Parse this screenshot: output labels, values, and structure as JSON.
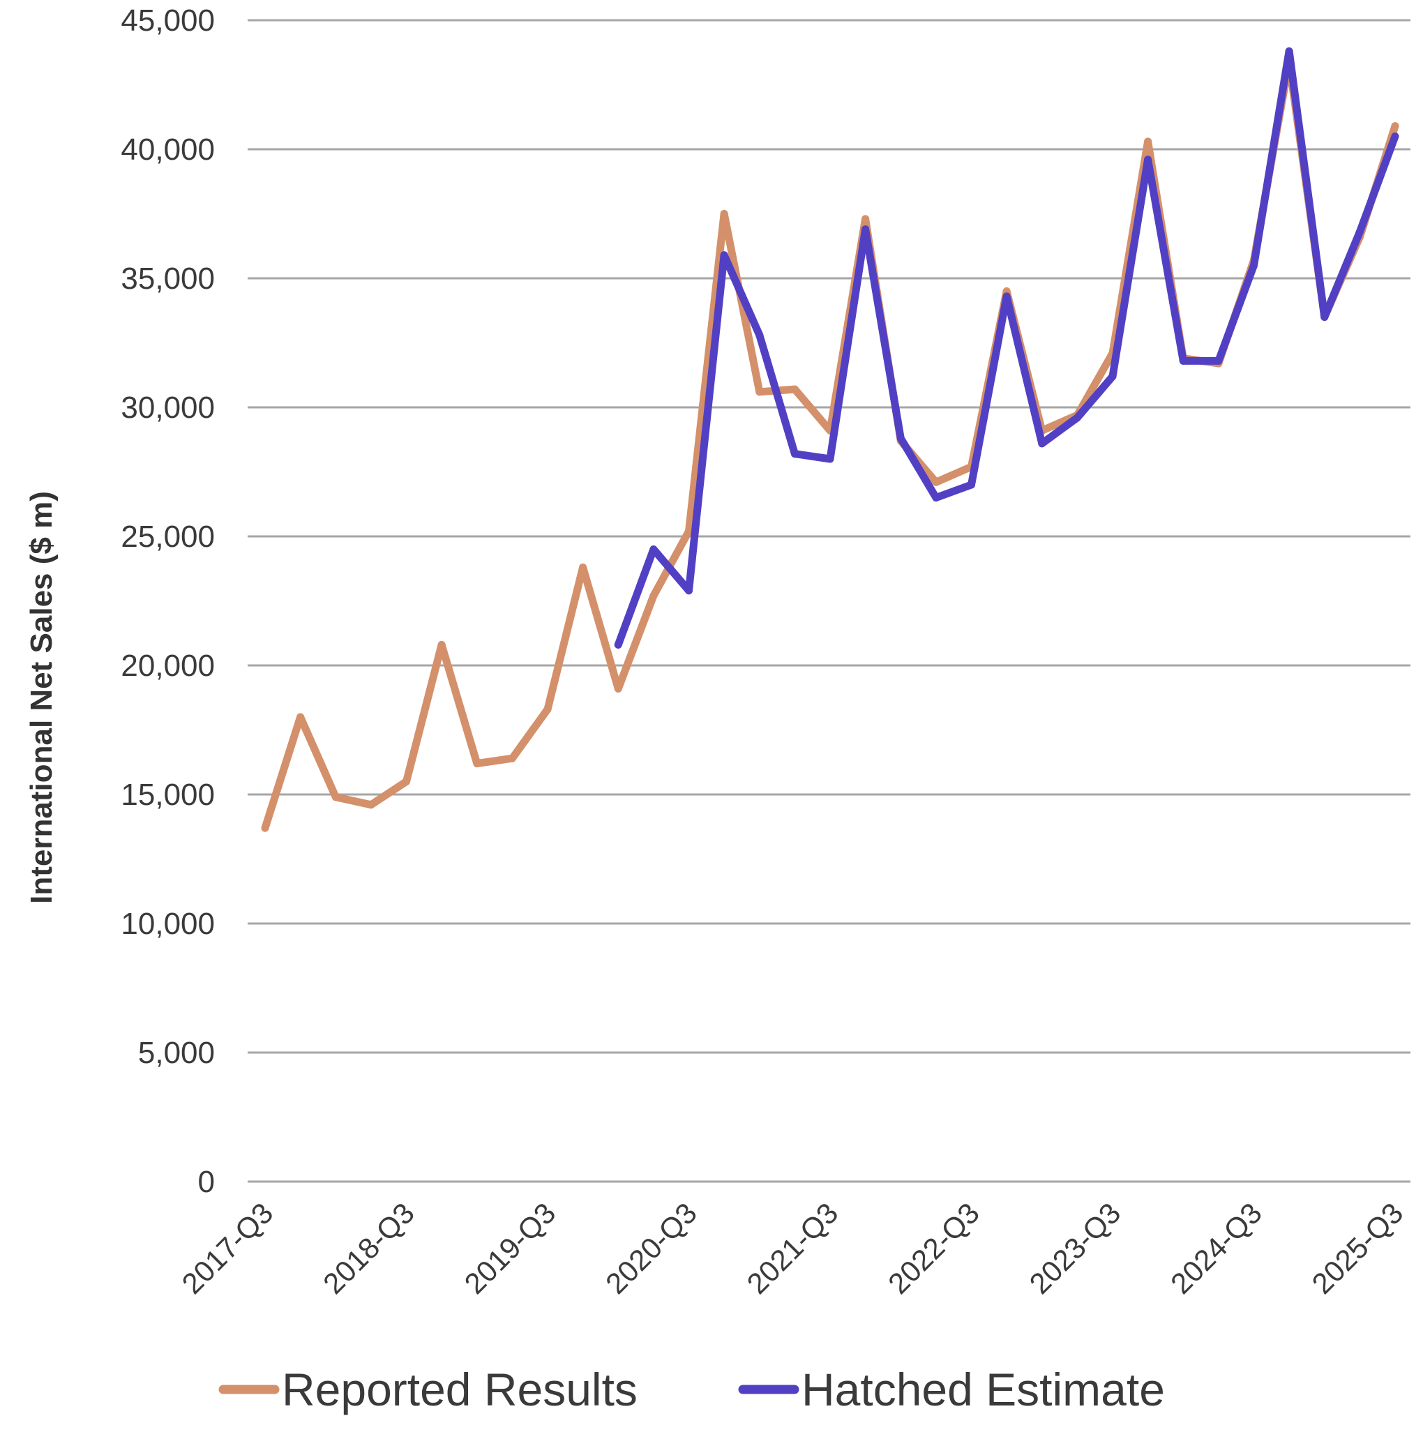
{
  "chart_data": {
    "type": "line",
    "title": "",
    "xlabel": "",
    "ylabel": "International Net Sales ($ m)",
    "ylim": [
      0,
      45000
    ],
    "yticks": [
      0,
      5000,
      10000,
      15000,
      20000,
      25000,
      30000,
      35000,
      40000,
      45000
    ],
    "ytick_labels": [
      "0",
      "5,000",
      "10,000",
      "15,000",
      "20,000",
      "25,000",
      "30,000",
      "35,000",
      "40,000",
      "45,000"
    ],
    "xtick_labels": [
      "2017-Q3",
      "2018-Q3",
      "2019-Q3",
      "2020-Q3",
      "2021-Q3",
      "2022-Q3",
      "2023-Q3",
      "2024-Q3",
      "2025-Q3"
    ],
    "categories": [
      "2017-Q3",
      "2017-Q4",
      "2018-Q1",
      "2018-Q2",
      "2018-Q3",
      "2018-Q4",
      "2019-Q1",
      "2019-Q2",
      "2019-Q3",
      "2019-Q4",
      "2020-Q1",
      "2020-Q2",
      "2020-Q3",
      "2020-Q4",
      "2021-Q1",
      "2021-Q2",
      "2021-Q3",
      "2021-Q4",
      "2022-Q1",
      "2022-Q2",
      "2022-Q3",
      "2022-Q4",
      "2023-Q1",
      "2023-Q2",
      "2023-Q3",
      "2023-Q4",
      "2024-Q1",
      "2024-Q2",
      "2024-Q3",
      "2024-Q4",
      "2025-Q1",
      "2025-Q2",
      "2025-Q3"
    ],
    "grid": true,
    "legend_position": "bottom",
    "series": [
      {
        "name": "Reported Results",
        "color": "#d4906a",
        "values": [
          13700,
          18000,
          14900,
          14600,
          15500,
          20800,
          16200,
          16400,
          18300,
          23800,
          19100,
          22700,
          25200,
          37500,
          30600,
          30700,
          29100,
          37300,
          28700,
          27100,
          27700,
          34500,
          29100,
          29700,
          32100,
          40300,
          31900,
          31700,
          35700,
          43400,
          33500,
          36600,
          40900
        ]
      },
      {
        "name": "Hatched Estimate",
        "color": "#5240c4",
        "values": [
          null,
          null,
          null,
          null,
          null,
          null,
          null,
          null,
          null,
          null,
          20800,
          24500,
          22900,
          35900,
          32800,
          28200,
          28000,
          36900,
          28800,
          26500,
          27000,
          34300,
          28600,
          29600,
          31200,
          39600,
          31800,
          31800,
          35500,
          43800,
          33500,
          36800,
          40500
        ]
      }
    ]
  }
}
